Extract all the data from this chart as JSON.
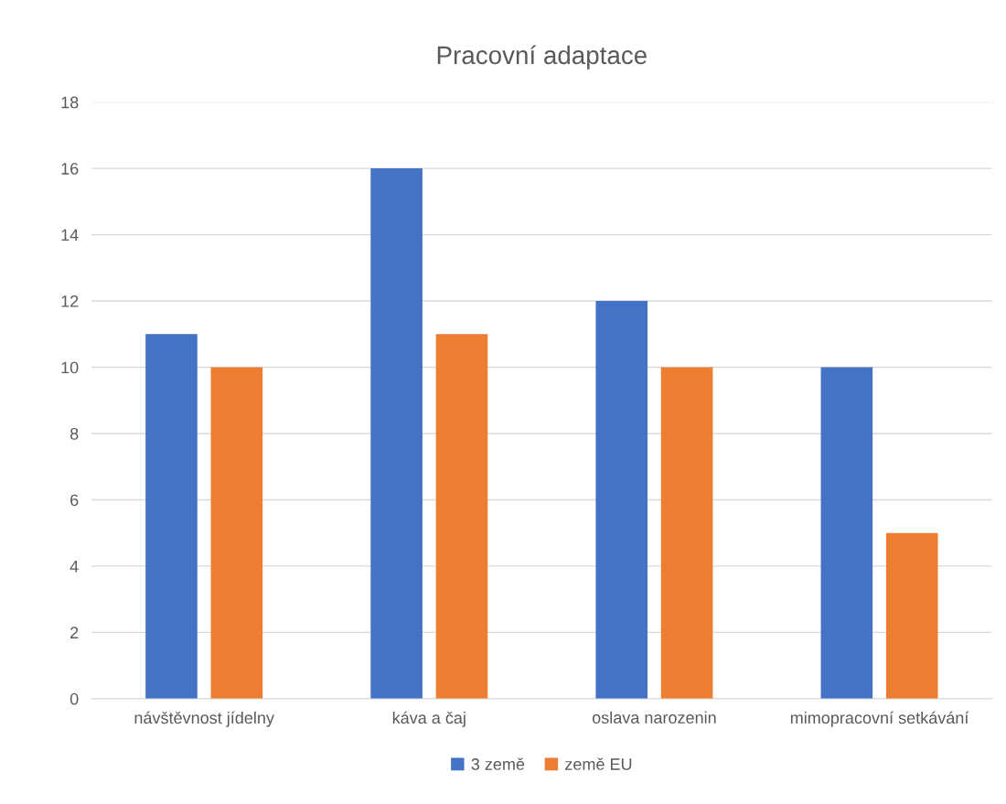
{
  "chart_data": {
    "type": "bar",
    "title": "Pracovní adaptace",
    "categories": [
      "návštěvnost jídelny",
      "káva a čaj",
      "oslava narozenin",
      "mimopracovní setkávání"
    ],
    "series": [
      {
        "name": "3 země",
        "color": "#4472c4",
        "values": [
          11,
          16,
          12,
          10
        ]
      },
      {
        "name": "země EU",
        "color": "#ed7d31",
        "values": [
          10,
          11,
          10,
          5
        ]
      }
    ],
    "ylim": [
      0,
      18
    ],
    "yticks": [
      0,
      2,
      4,
      6,
      8,
      10,
      12,
      14,
      16,
      18
    ],
    "grid": "y",
    "legend": "bottom"
  }
}
